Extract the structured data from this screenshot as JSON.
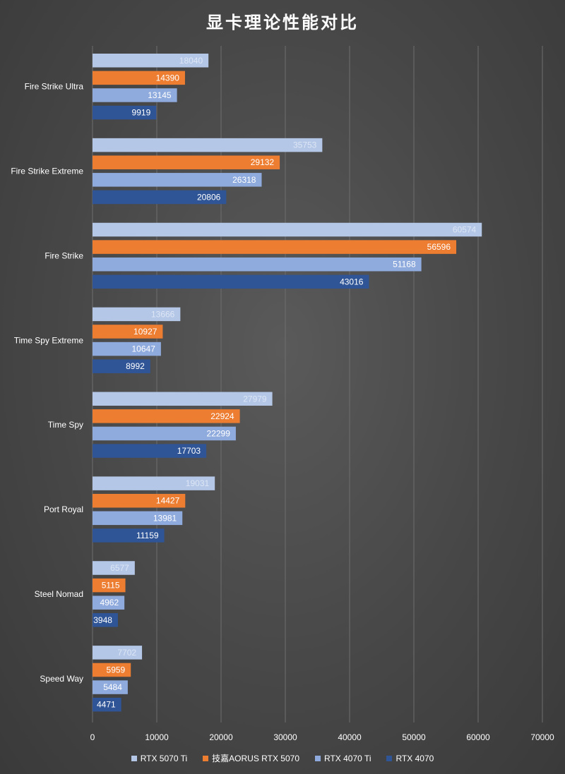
{
  "chart_data": {
    "type": "bar",
    "orientation": "horizontal",
    "title": "显卡理论性能对比",
    "categories": [
      "Fire Strike Ultra",
      "Fire Strike Extreme",
      "Fire Strike",
      "Time Spy Extreme",
      "Time Spy",
      "Port Royal",
      "Steel Nomad",
      "Speed Way"
    ],
    "series": [
      {
        "name": "RTX 5070 Ti",
        "color": "#b4c7e7",
        "label_color": "#dde6f5",
        "values": [
          18040,
          35753,
          60574,
          13666,
          27979,
          19031,
          6577,
          7702
        ]
      },
      {
        "name": "技嘉AORUS RTX 5070",
        "color": "#ed7d31",
        "label_color": "#ffffff",
        "values": [
          14390,
          29132,
          56596,
          10927,
          22924,
          14427,
          5115,
          5959
        ]
      },
      {
        "name": "RTX 4070 Ti",
        "color": "#8faadc",
        "label_color": "#ffffff",
        "values": [
          13145,
          26318,
          51168,
          10647,
          22299,
          13981,
          4962,
          5484
        ]
      },
      {
        "name": "RTX 4070",
        "color": "#2f5597",
        "label_color": "#ffffff",
        "values": [
          9919,
          20806,
          43016,
          8992,
          17703,
          11159,
          3948,
          4471
        ]
      }
    ],
    "xlim": [
      0,
      70000
    ],
    "xticks": [
      "0",
      "10000",
      "20000",
      "30000",
      "40000",
      "50000",
      "60000",
      "70000"
    ],
    "grid": true,
    "legend_position": "bottom"
  }
}
